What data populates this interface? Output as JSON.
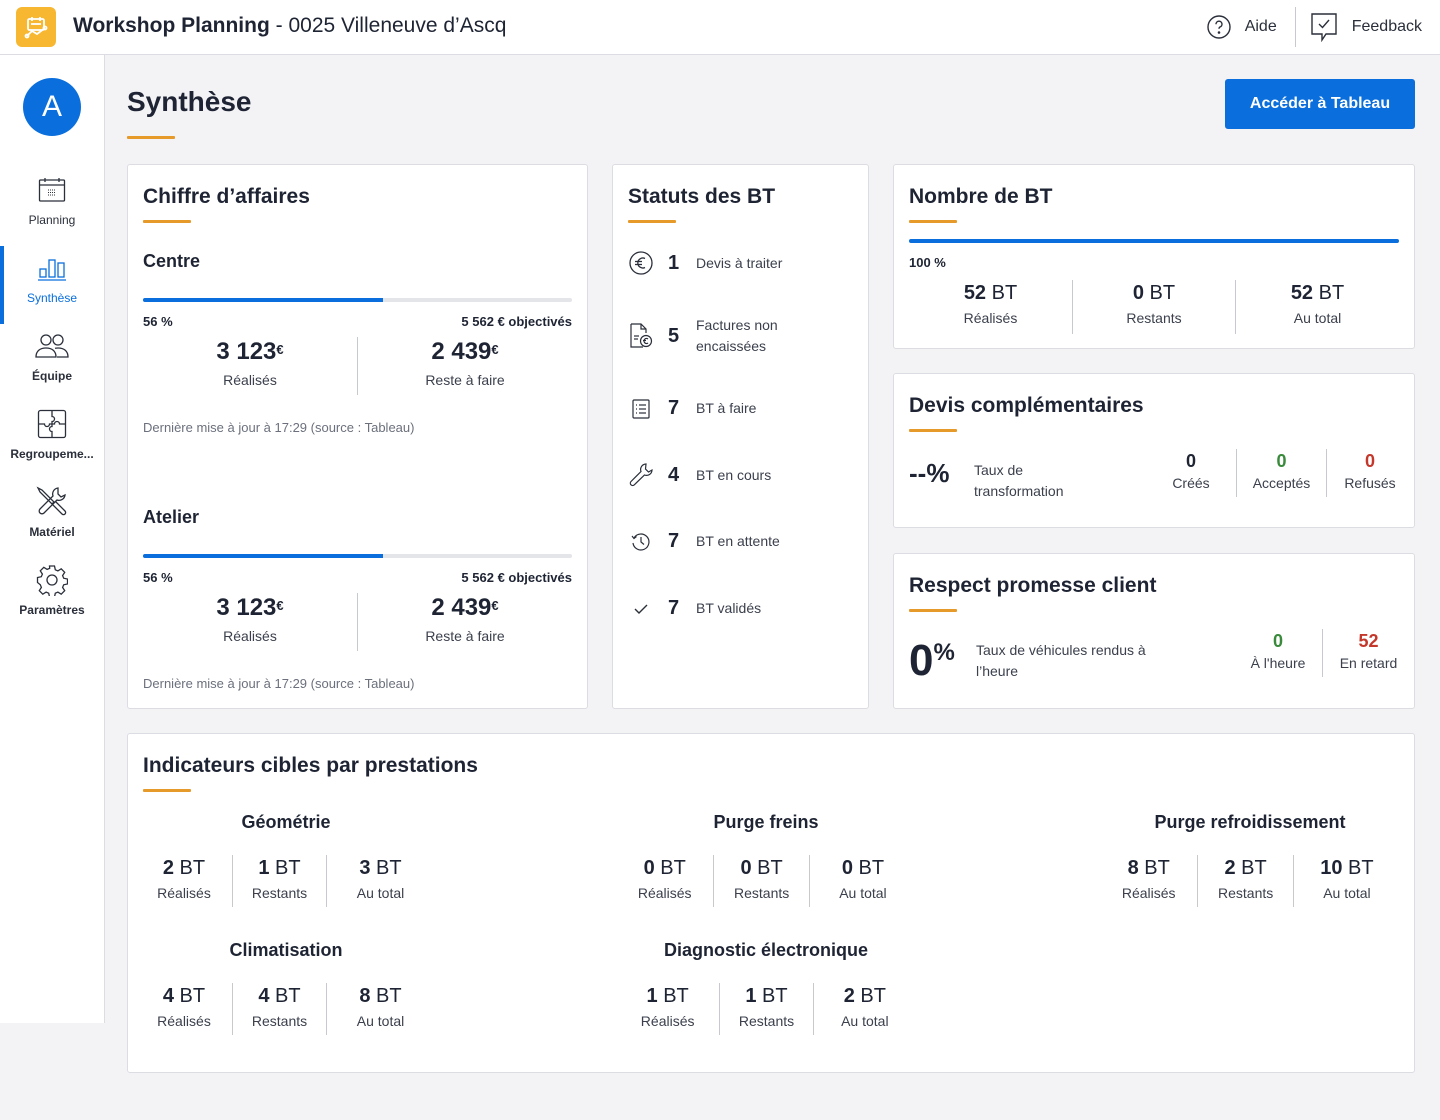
{
  "header": {
    "app_name": "Workshop Planning",
    "site": " - 0025 Villeneuve d’Ascq",
    "help_label": "Aide",
    "feedback_label": "Feedback"
  },
  "sidebar": {
    "avatar_initial": "A",
    "items": [
      {
        "label": "Planning",
        "icon": "calendar-icon",
        "active": false
      },
      {
        "label": "Synthèse",
        "icon": "bar-chart-icon",
        "active": true
      },
      {
        "label": "Équipe",
        "icon": "team-icon",
        "active": false
      },
      {
        "label": "Regroupeme...",
        "icon": "puzzle-icon",
        "active": false
      },
      {
        "label": "Matériel",
        "icon": "tools-icon",
        "active": false
      },
      {
        "label": "Paramètres",
        "icon": "gear-icon",
        "active": false
      }
    ]
  },
  "page": {
    "title": "Synthèse",
    "primary_button": "Accéder à Tableau"
  },
  "chiffre_affaires": {
    "title": "Chiffre d’affaires",
    "sections": [
      {
        "name": "Centre",
        "progress_percent": 56,
        "progress_label": "56 %",
        "objective": "5 562 € objectivés",
        "done_value": "3 123",
        "done_label": "Réalisés",
        "remaining_value": "2 439",
        "remaining_label": "Reste à faire",
        "currency": "€",
        "updated": "Dernière mise à jour à 17:29 (source : Tableau)"
      },
      {
        "name": "Atelier",
        "progress_percent": 56,
        "progress_label": "56 %",
        "objective": "5 562 € objectivés",
        "done_value": "3 123",
        "done_label": "Réalisés",
        "remaining_value": "2 439",
        "remaining_label": "Reste à faire",
        "currency": "€",
        "updated": "Dernière mise à jour à 17:29 (source : Tableau)"
      }
    ]
  },
  "statuts": {
    "title": "Statuts des BT",
    "items": [
      {
        "icon": "euro-circle-icon",
        "count": "1",
        "label": "Devis à traiter"
      },
      {
        "icon": "invoice-icon",
        "count": "5",
        "label": "Factures non encaissées"
      },
      {
        "icon": "checklist-icon",
        "count": "7",
        "label": "BT à faire"
      },
      {
        "icon": "wrench-icon",
        "count": "4",
        "label": "BT en cours"
      },
      {
        "icon": "history-icon",
        "count": "7",
        "label": "BT en attente"
      },
      {
        "icon": "check-icon",
        "count": "7",
        "label": "BT validés"
      }
    ]
  },
  "nombre_bt": {
    "title": "Nombre de BT",
    "progress_percent": 100,
    "progress_label": "100 %",
    "unit": " BT",
    "kpis": [
      {
        "value": "52",
        "label": "Réalisés"
      },
      {
        "value": "0",
        "label": "Restants"
      },
      {
        "value": "52",
        "label": "Au total"
      }
    ]
  },
  "devis": {
    "title": "Devis complémentaires",
    "rate": "--%",
    "rate_label": "Taux de transformation",
    "kpis": [
      {
        "value": "0",
        "label": "Créés",
        "color": "#1e2433"
      },
      {
        "value": "0",
        "label": "Acceptés",
        "color": "#3a8a3c"
      },
      {
        "value": "0",
        "label": "Refusés",
        "color": "#c4382c"
      }
    ]
  },
  "promesse": {
    "title": "Respect promesse client",
    "rate": "0",
    "rate_unit": "%",
    "rate_label": "Taux de véhicules rendus à l’heure",
    "kpis": [
      {
        "value": "0",
        "label": "À l'heure",
        "color": "#3a8a3c"
      },
      {
        "value": "52",
        "label": "En retard",
        "color": "#c4382c"
      }
    ]
  },
  "indicateurs": {
    "title": "Indicateurs cibles par prestations",
    "unit": " BT",
    "prestations": [
      {
        "name": "Géométrie",
        "done": "2",
        "remaining": "1",
        "total": "3"
      },
      {
        "name": "Purge freins",
        "done": "0",
        "remaining": "0",
        "total": "0"
      },
      {
        "name": "Purge refroidissement",
        "done": "8",
        "remaining": "2",
        "total": "10"
      },
      {
        "name": "Climatisation",
        "done": "4",
        "remaining": "4",
        "total": "8"
      },
      {
        "name": "Diagnostic électronique",
        "done": "1",
        "remaining": "1",
        "total": "2"
      }
    ],
    "labels": {
      "done": "Réalisés",
      "remaining": "Restants",
      "total": "Au total"
    }
  },
  "colors": {
    "primary": "#0a6fdc",
    "accent": "#e69a2a",
    "logo": "#f7b731",
    "success": "#3a8a3c",
    "danger": "#c4382c"
  }
}
